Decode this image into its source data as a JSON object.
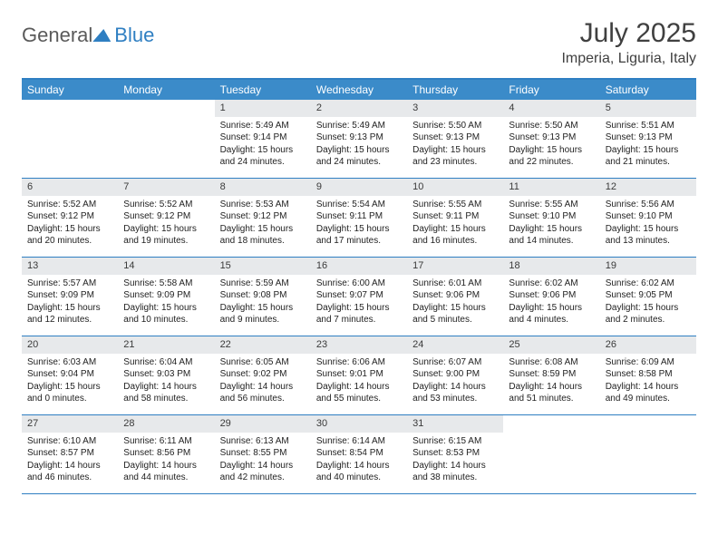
{
  "brand": {
    "word1": "General",
    "word2": "Blue"
  },
  "title": {
    "month": "July 2025",
    "location": "Imperia, Liguria, Italy"
  },
  "colors": {
    "accent": "#2f7fc2",
    "header_bar": "#3b8bc9",
    "daynum_bg": "#e7e9eb",
    "text": "#404040",
    "border": "#2f7fc2"
  },
  "weekdays": [
    "Sunday",
    "Monday",
    "Tuesday",
    "Wednesday",
    "Thursday",
    "Friday",
    "Saturday"
  ],
  "weeks": [
    [
      null,
      null,
      {
        "d": "1",
        "sr": "Sunrise: 5:49 AM",
        "ss": "Sunset: 9:14 PM",
        "dl": "Daylight: 15 hours and 24 minutes."
      },
      {
        "d": "2",
        "sr": "Sunrise: 5:49 AM",
        "ss": "Sunset: 9:13 PM",
        "dl": "Daylight: 15 hours and 24 minutes."
      },
      {
        "d": "3",
        "sr": "Sunrise: 5:50 AM",
        "ss": "Sunset: 9:13 PM",
        "dl": "Daylight: 15 hours and 23 minutes."
      },
      {
        "d": "4",
        "sr": "Sunrise: 5:50 AM",
        "ss": "Sunset: 9:13 PM",
        "dl": "Daylight: 15 hours and 22 minutes."
      },
      {
        "d": "5",
        "sr": "Sunrise: 5:51 AM",
        "ss": "Sunset: 9:13 PM",
        "dl": "Daylight: 15 hours and 21 minutes."
      }
    ],
    [
      {
        "d": "6",
        "sr": "Sunrise: 5:52 AM",
        "ss": "Sunset: 9:12 PM",
        "dl": "Daylight: 15 hours and 20 minutes."
      },
      {
        "d": "7",
        "sr": "Sunrise: 5:52 AM",
        "ss": "Sunset: 9:12 PM",
        "dl": "Daylight: 15 hours and 19 minutes."
      },
      {
        "d": "8",
        "sr": "Sunrise: 5:53 AM",
        "ss": "Sunset: 9:12 PM",
        "dl": "Daylight: 15 hours and 18 minutes."
      },
      {
        "d": "9",
        "sr": "Sunrise: 5:54 AM",
        "ss": "Sunset: 9:11 PM",
        "dl": "Daylight: 15 hours and 17 minutes."
      },
      {
        "d": "10",
        "sr": "Sunrise: 5:55 AM",
        "ss": "Sunset: 9:11 PM",
        "dl": "Daylight: 15 hours and 16 minutes."
      },
      {
        "d": "11",
        "sr": "Sunrise: 5:55 AM",
        "ss": "Sunset: 9:10 PM",
        "dl": "Daylight: 15 hours and 14 minutes."
      },
      {
        "d": "12",
        "sr": "Sunrise: 5:56 AM",
        "ss": "Sunset: 9:10 PM",
        "dl": "Daylight: 15 hours and 13 minutes."
      }
    ],
    [
      {
        "d": "13",
        "sr": "Sunrise: 5:57 AM",
        "ss": "Sunset: 9:09 PM",
        "dl": "Daylight: 15 hours and 12 minutes."
      },
      {
        "d": "14",
        "sr": "Sunrise: 5:58 AM",
        "ss": "Sunset: 9:09 PM",
        "dl": "Daylight: 15 hours and 10 minutes."
      },
      {
        "d": "15",
        "sr": "Sunrise: 5:59 AM",
        "ss": "Sunset: 9:08 PM",
        "dl": "Daylight: 15 hours and 9 minutes."
      },
      {
        "d": "16",
        "sr": "Sunrise: 6:00 AM",
        "ss": "Sunset: 9:07 PM",
        "dl": "Daylight: 15 hours and 7 minutes."
      },
      {
        "d": "17",
        "sr": "Sunrise: 6:01 AM",
        "ss": "Sunset: 9:06 PM",
        "dl": "Daylight: 15 hours and 5 minutes."
      },
      {
        "d": "18",
        "sr": "Sunrise: 6:02 AM",
        "ss": "Sunset: 9:06 PM",
        "dl": "Daylight: 15 hours and 4 minutes."
      },
      {
        "d": "19",
        "sr": "Sunrise: 6:02 AM",
        "ss": "Sunset: 9:05 PM",
        "dl": "Daylight: 15 hours and 2 minutes."
      }
    ],
    [
      {
        "d": "20",
        "sr": "Sunrise: 6:03 AM",
        "ss": "Sunset: 9:04 PM",
        "dl": "Daylight: 15 hours and 0 minutes."
      },
      {
        "d": "21",
        "sr": "Sunrise: 6:04 AM",
        "ss": "Sunset: 9:03 PM",
        "dl": "Daylight: 14 hours and 58 minutes."
      },
      {
        "d": "22",
        "sr": "Sunrise: 6:05 AM",
        "ss": "Sunset: 9:02 PM",
        "dl": "Daylight: 14 hours and 56 minutes."
      },
      {
        "d": "23",
        "sr": "Sunrise: 6:06 AM",
        "ss": "Sunset: 9:01 PM",
        "dl": "Daylight: 14 hours and 55 minutes."
      },
      {
        "d": "24",
        "sr": "Sunrise: 6:07 AM",
        "ss": "Sunset: 9:00 PM",
        "dl": "Daylight: 14 hours and 53 minutes."
      },
      {
        "d": "25",
        "sr": "Sunrise: 6:08 AM",
        "ss": "Sunset: 8:59 PM",
        "dl": "Daylight: 14 hours and 51 minutes."
      },
      {
        "d": "26",
        "sr": "Sunrise: 6:09 AM",
        "ss": "Sunset: 8:58 PM",
        "dl": "Daylight: 14 hours and 49 minutes."
      }
    ],
    [
      {
        "d": "27",
        "sr": "Sunrise: 6:10 AM",
        "ss": "Sunset: 8:57 PM",
        "dl": "Daylight: 14 hours and 46 minutes."
      },
      {
        "d": "28",
        "sr": "Sunrise: 6:11 AM",
        "ss": "Sunset: 8:56 PM",
        "dl": "Daylight: 14 hours and 44 minutes."
      },
      {
        "d": "29",
        "sr": "Sunrise: 6:13 AM",
        "ss": "Sunset: 8:55 PM",
        "dl": "Daylight: 14 hours and 42 minutes."
      },
      {
        "d": "30",
        "sr": "Sunrise: 6:14 AM",
        "ss": "Sunset: 8:54 PM",
        "dl": "Daylight: 14 hours and 40 minutes."
      },
      {
        "d": "31",
        "sr": "Sunrise: 6:15 AM",
        "ss": "Sunset: 8:53 PM",
        "dl": "Daylight: 14 hours and 38 minutes."
      },
      null,
      null
    ]
  ]
}
